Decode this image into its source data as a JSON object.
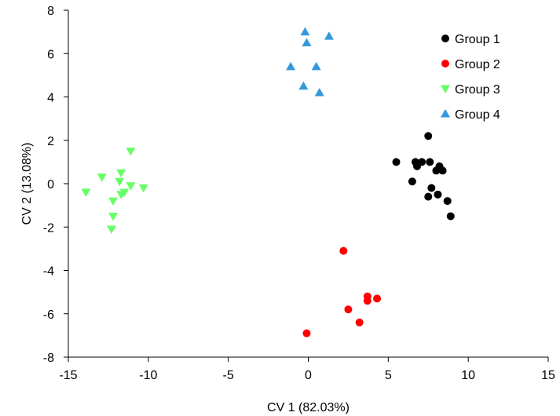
{
  "chart_data": {
    "type": "scatter",
    "xlabel": "CV 1 (82.03%)",
    "ylabel": "CV 2 (13.08%)",
    "xlim": [
      -15,
      15
    ],
    "ylim": [
      -8,
      8
    ],
    "xticks": [
      -15,
      -10,
      -5,
      0,
      5,
      10,
      15
    ],
    "yticks": [
      -8,
      -6,
      -4,
      -2,
      0,
      2,
      4,
      6,
      8
    ],
    "grid": false,
    "legend_position": "top-right",
    "series": [
      {
        "name": "Group 1",
        "marker": "circle",
        "color": "#000000",
        "points": [
          [
            7.5,
            2.2
          ],
          [
            5.5,
            1.0
          ],
          [
            6.7,
            1.0
          ],
          [
            7.1,
            1.0
          ],
          [
            7.6,
            1.0
          ],
          [
            6.8,
            0.8
          ],
          [
            8.2,
            0.8
          ],
          [
            8.0,
            0.6
          ],
          [
            8.4,
            0.6
          ],
          [
            6.5,
            0.1
          ],
          [
            7.7,
            -0.2
          ],
          [
            8.1,
            -0.5
          ],
          [
            7.5,
            -0.6
          ],
          [
            8.7,
            -0.8
          ],
          [
            8.9,
            -1.5
          ]
        ]
      },
      {
        "name": "Group 2",
        "marker": "circle",
        "color": "#ff0000",
        "points": [
          [
            2.2,
            -3.1
          ],
          [
            3.7,
            -5.2
          ],
          [
            4.3,
            -5.3
          ],
          [
            3.7,
            -5.4
          ],
          [
            2.5,
            -5.8
          ],
          [
            3.2,
            -6.4
          ],
          [
            -0.1,
            -6.9
          ]
        ]
      },
      {
        "name": "Group 3",
        "marker": "triangle-down",
        "color": "#66ff66",
        "points": [
          [
            -11.1,
            1.5
          ],
          [
            -12.9,
            0.3
          ],
          [
            -11.7,
            0.5
          ],
          [
            -11.8,
            0.1
          ],
          [
            -11.1,
            -0.1
          ],
          [
            -10.3,
            -0.2
          ],
          [
            -13.9,
            -0.4
          ],
          [
            -11.5,
            -0.4
          ],
          [
            -11.7,
            -0.5
          ],
          [
            -12.2,
            -0.8
          ],
          [
            -12.2,
            -1.5
          ],
          [
            -12.3,
            -2.1
          ]
        ]
      },
      {
        "name": "Group 4",
        "marker": "triangle-up",
        "color": "#3399dd",
        "points": [
          [
            -0.2,
            7.0
          ],
          [
            1.3,
            6.8
          ],
          [
            -0.1,
            6.5
          ],
          [
            -1.1,
            5.4
          ],
          [
            0.5,
            5.4
          ],
          [
            -0.3,
            4.5
          ],
          [
            0.7,
            4.2
          ]
        ]
      }
    ]
  }
}
